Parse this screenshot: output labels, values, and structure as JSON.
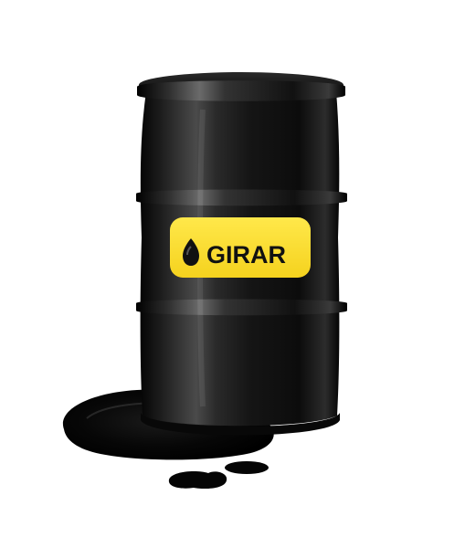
{
  "product": {
    "brand_label": "GIRAR",
    "label_color": "#FFE03A",
    "barrel_color": "#141414",
    "spill_color": "#050505",
    "background_color": "#FFFFFF",
    "label_icon": "oil-drop-icon"
  }
}
